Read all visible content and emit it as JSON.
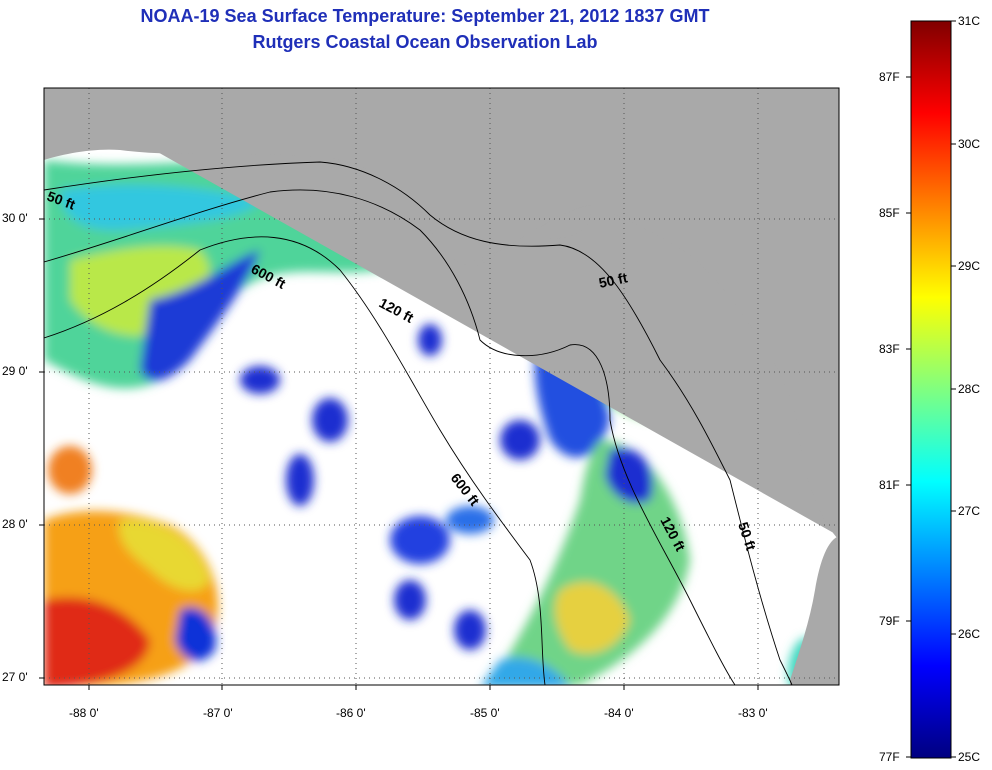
{
  "title": {
    "line1": "NOAA-19 Sea Surface Temperature:  September 21, 2012 1837 GMT",
    "line2": "Rutgers Coastal Ocean Observation Lab"
  },
  "colors": {
    "title_text": "#1f2fb8",
    "land": "#a9a9a9",
    "no_data": "#ffffff",
    "contour": "#000000",
    "scale": [
      "#000080",
      "#0000ff",
      "#0080ff",
      "#00ffff",
      "#80ff80",
      "#ffff00",
      "#ff8000",
      "#ff0000",
      "#800000"
    ]
  },
  "map": {
    "lon_ticks": [
      "-88 0'",
      "-87 0'",
      "-86 0'",
      "-85 0'",
      "-84 0'",
      "-83 0'"
    ],
    "lat_ticks": [
      "30 0'",
      "29 0'",
      "28 0'",
      "27 0'"
    ],
    "contour_labels": [
      "50 ft",
      "600 ft",
      "120 ft",
      "50 ft",
      "600 ft",
      "120 ft",
      "50 ft"
    ],
    "gridlines": "dotted"
  },
  "colorbar": {
    "orientation": "vertical",
    "celsius_labels": [
      "31C",
      "30C",
      "29C",
      "28C",
      "27C",
      "26C",
      "25C"
    ],
    "fahrenheit_labels": [
      "87F",
      "85F",
      "83F",
      "81F",
      "79F",
      "77F"
    ]
  }
}
